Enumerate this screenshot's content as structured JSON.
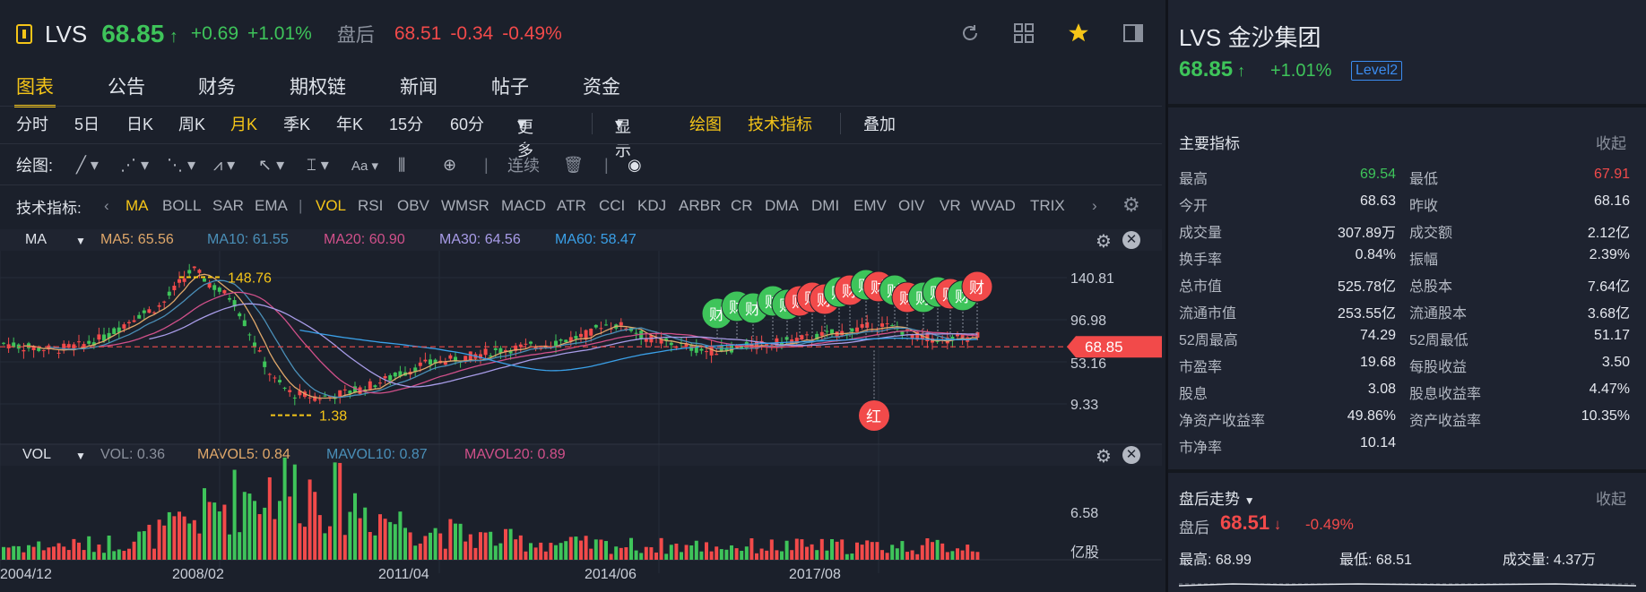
{
  "header": {
    "ticker": "LVS",
    "price": "68.85",
    "change": "+0.69",
    "change_pct": "+1.01%",
    "after_label": "盘后",
    "after_price": "68.51",
    "after_change": "-0.34",
    "after_change_pct": "-0.49%",
    "icons": [
      "refresh-icon",
      "grid-icon",
      "star-icon",
      "panel-toggle-icon"
    ]
  },
  "tabs": [
    {
      "label": "图表",
      "active": true
    },
    {
      "label": "公告",
      "active": false
    },
    {
      "label": "财务",
      "active": false
    },
    {
      "label": "期权链",
      "active": false
    },
    {
      "label": "新闻",
      "active": false
    },
    {
      "label": "帖子",
      "active": false
    },
    {
      "label": "资金",
      "active": false
    }
  ],
  "periods": {
    "items": [
      "分时",
      "5日",
      "日K",
      "周K",
      "月K",
      "季K",
      "年K",
      "15分",
      "60分"
    ],
    "active": "月K",
    "more": "更多",
    "display": "显示",
    "draw": "绘图",
    "tech": "技术指标",
    "overlay": "叠加"
  },
  "drawing": {
    "label": "绘图:",
    "continuous": "连续"
  },
  "indicators": {
    "label": "技术指标:",
    "main": [
      "MA",
      "BOLL",
      "SAR",
      "EMA"
    ],
    "sub": [
      "VOL",
      "RSI",
      "OBV",
      "WMSR",
      "MACD",
      "ATR",
      "CCI",
      "KDJ",
      "ARBR",
      "CR",
      "DMA",
      "DMI",
      "EMV",
      "OIV",
      "VR",
      "WVAD",
      "TRIX"
    ],
    "active_main": "MA",
    "active_sub": "VOL"
  },
  "ma_legend": {
    "name": "MA",
    "ma5": "MA5: 65.56",
    "ma10": "MA10: 61.55",
    "ma20": "MA20: 60.90",
    "ma30": "MA30: 64.56",
    "ma60": "MA60: 58.47",
    "colors": {
      "ma5": "#e0a86a",
      "ma10": "#4a8fb8",
      "ma20": "#d0508a",
      "ma30": "#a89ce8",
      "ma60": "#3aa0e8"
    }
  },
  "vol_legend": {
    "name": "VOL",
    "vol": "VOL: 0.36",
    "mavol5": "MAVOL5: 0.84",
    "mavol10": "MAVOL10: 0.87",
    "mavol20": "MAVOL20: 0.89"
  },
  "chart_data": {
    "type": "candlestick",
    "price_axis_labels": [
      "140.81",
      "96.98",
      "53.16",
      "9.33"
    ],
    "current_price_label": "68.85",
    "max_marker": "148.76",
    "min_marker": "1.38",
    "volume_axis_labels": [
      "6.58",
      "亿股"
    ],
    "x_labels": [
      "2004/12",
      "2008/02",
      "2011/04",
      "2014/06",
      "2017/08"
    ],
    "event_markers": [
      "财",
      "红"
    ],
    "colors": {
      "up": "#3ec45a",
      "down": "#f24a4a",
      "price_line": "#f24a4a"
    }
  },
  "quote_panel": {
    "title": "LVS 金沙集团",
    "price": "68.85",
    "change_pct": "+1.01%",
    "badge": "Level2",
    "section_title": "主要指标",
    "fold": "收起",
    "rows": [
      {
        "k1": "最高",
        "v1": "69.54",
        "c1": "green",
        "k2": "最低",
        "v2": "67.91",
        "c2": "red"
      },
      {
        "k1": "今开",
        "v1": "68.63",
        "c1": "white",
        "k2": "昨收",
        "v2": "68.16",
        "c2": "white"
      },
      {
        "k1": "成交量",
        "v1": "307.89万",
        "c1": "white",
        "k2": "成交额",
        "v2": "2.12亿",
        "c2": "white"
      },
      {
        "k1": "换手率",
        "v1": "0.84%",
        "c1": "white",
        "k2": "振幅",
        "v2": "2.39%",
        "c2": "white"
      },
      {
        "k1": "总市值",
        "v1": "525.78亿",
        "c1": "white",
        "k2": "总股本",
        "v2": "7.64亿",
        "c2": "white"
      },
      {
        "k1": "流通市值",
        "v1": "253.55亿",
        "c1": "white",
        "k2": "流通股本",
        "v2": "3.68亿",
        "c2": "white"
      },
      {
        "k1": "52周最高",
        "v1": "74.29",
        "c1": "white",
        "k2": "52周最低",
        "v2": "51.17",
        "c2": "white"
      },
      {
        "k1": "市盈率",
        "v1": "19.68",
        "c1": "white",
        "k2": "每股收益",
        "v2": "3.50",
        "c2": "white"
      },
      {
        "k1": "股息",
        "v1": "3.08",
        "c1": "white",
        "k2": "股息收益率",
        "v2": "4.47%",
        "c2": "white"
      },
      {
        "k1": "净资产收益率",
        "v1": "49.86%",
        "c1": "white",
        "k2": "资产收益率",
        "v2": "10.35%",
        "c2": "white"
      },
      {
        "k1": "市净率",
        "v1": "10.14",
        "c1": "white",
        "k2": "",
        "v2": "",
        "c2": "white"
      }
    ],
    "after_hours": {
      "title": "盘后走势",
      "fold": "收起",
      "label": "盘后",
      "price": "68.51",
      "change_pct": "-0.49%",
      "high": "最高: 68.99",
      "low": "最低: 68.51",
      "volume": "成交量: 4.37万"
    }
  }
}
